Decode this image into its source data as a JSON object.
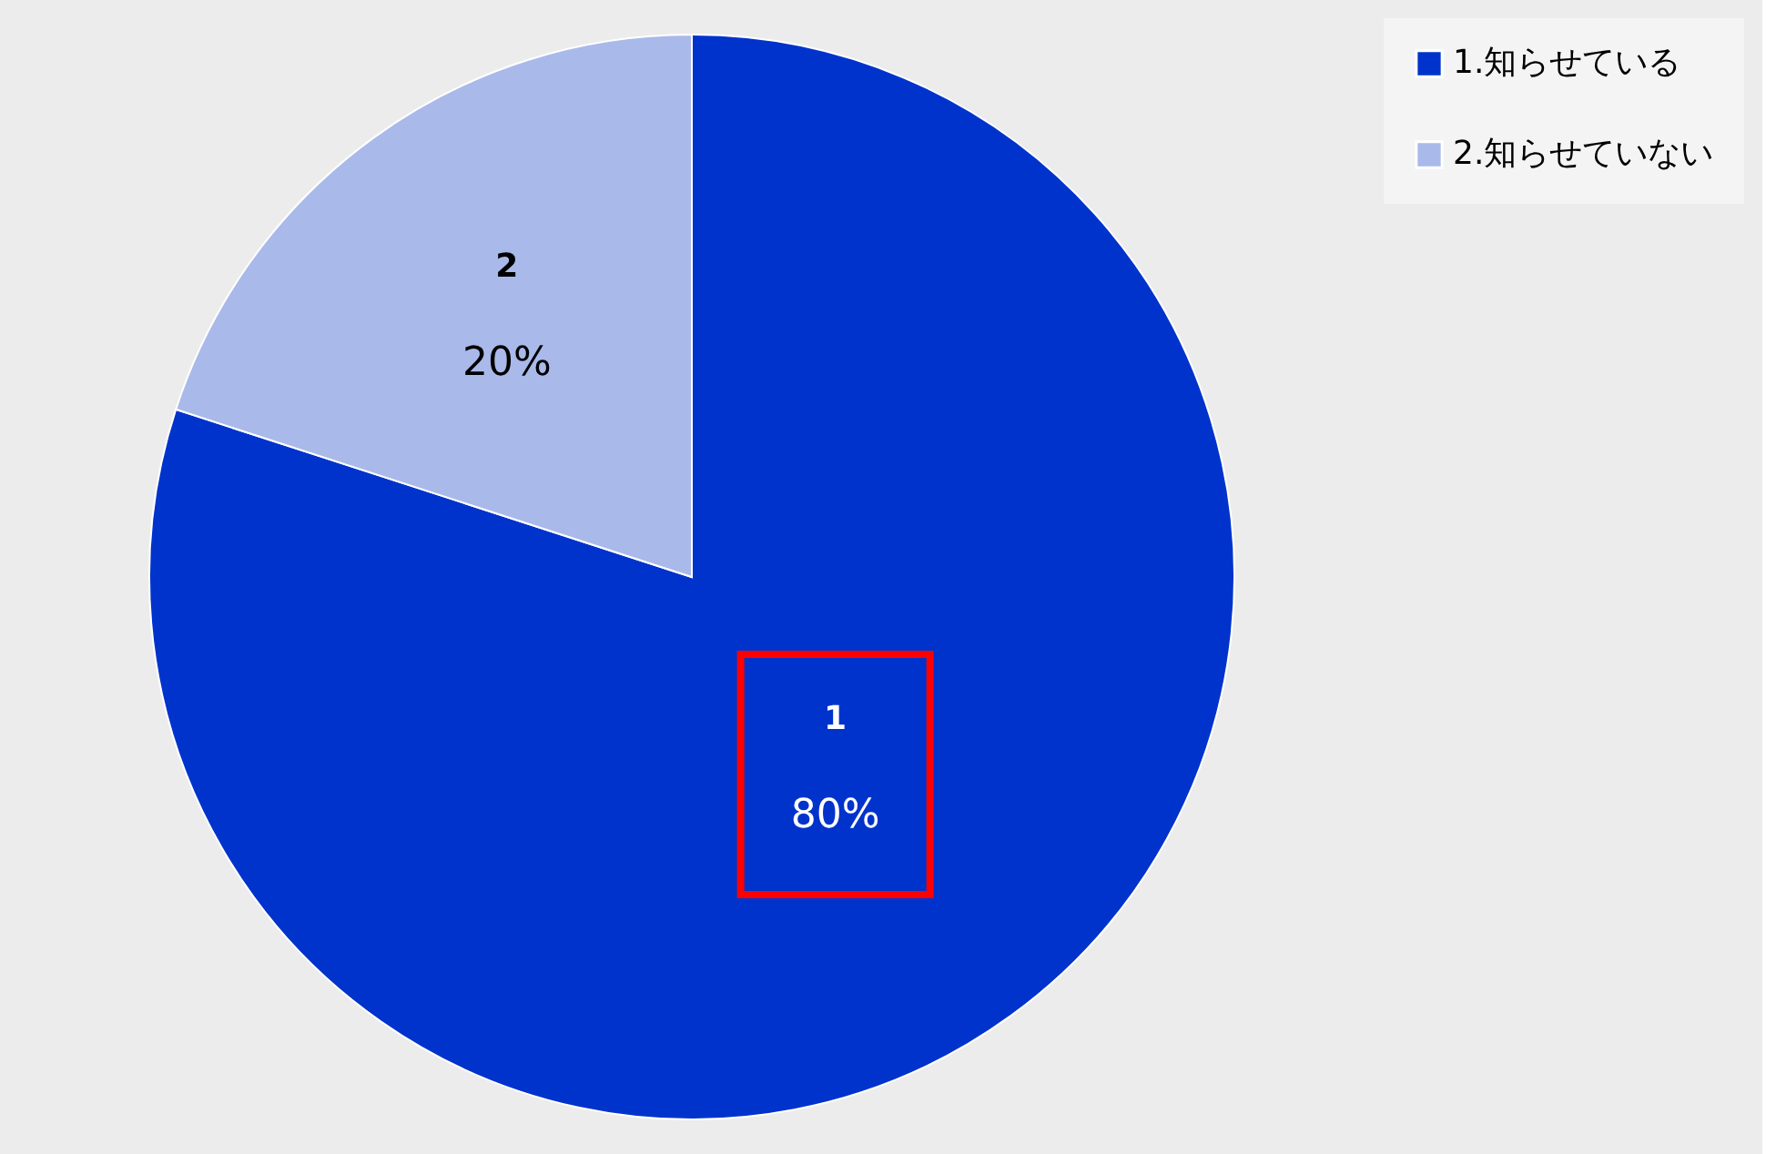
{
  "chart_data": {
    "type": "pie",
    "categories": [
      "1.知らせている",
      "2.知らせていない"
    ],
    "values": [
      80,
      20
    ],
    "colors": [
      "#0033cc",
      "#a9b9ea"
    ],
    "annotations": [
      "1",
      "2"
    ],
    "value_labels": [
      "80%",
      "20%"
    ],
    "legend": "right"
  }
}
